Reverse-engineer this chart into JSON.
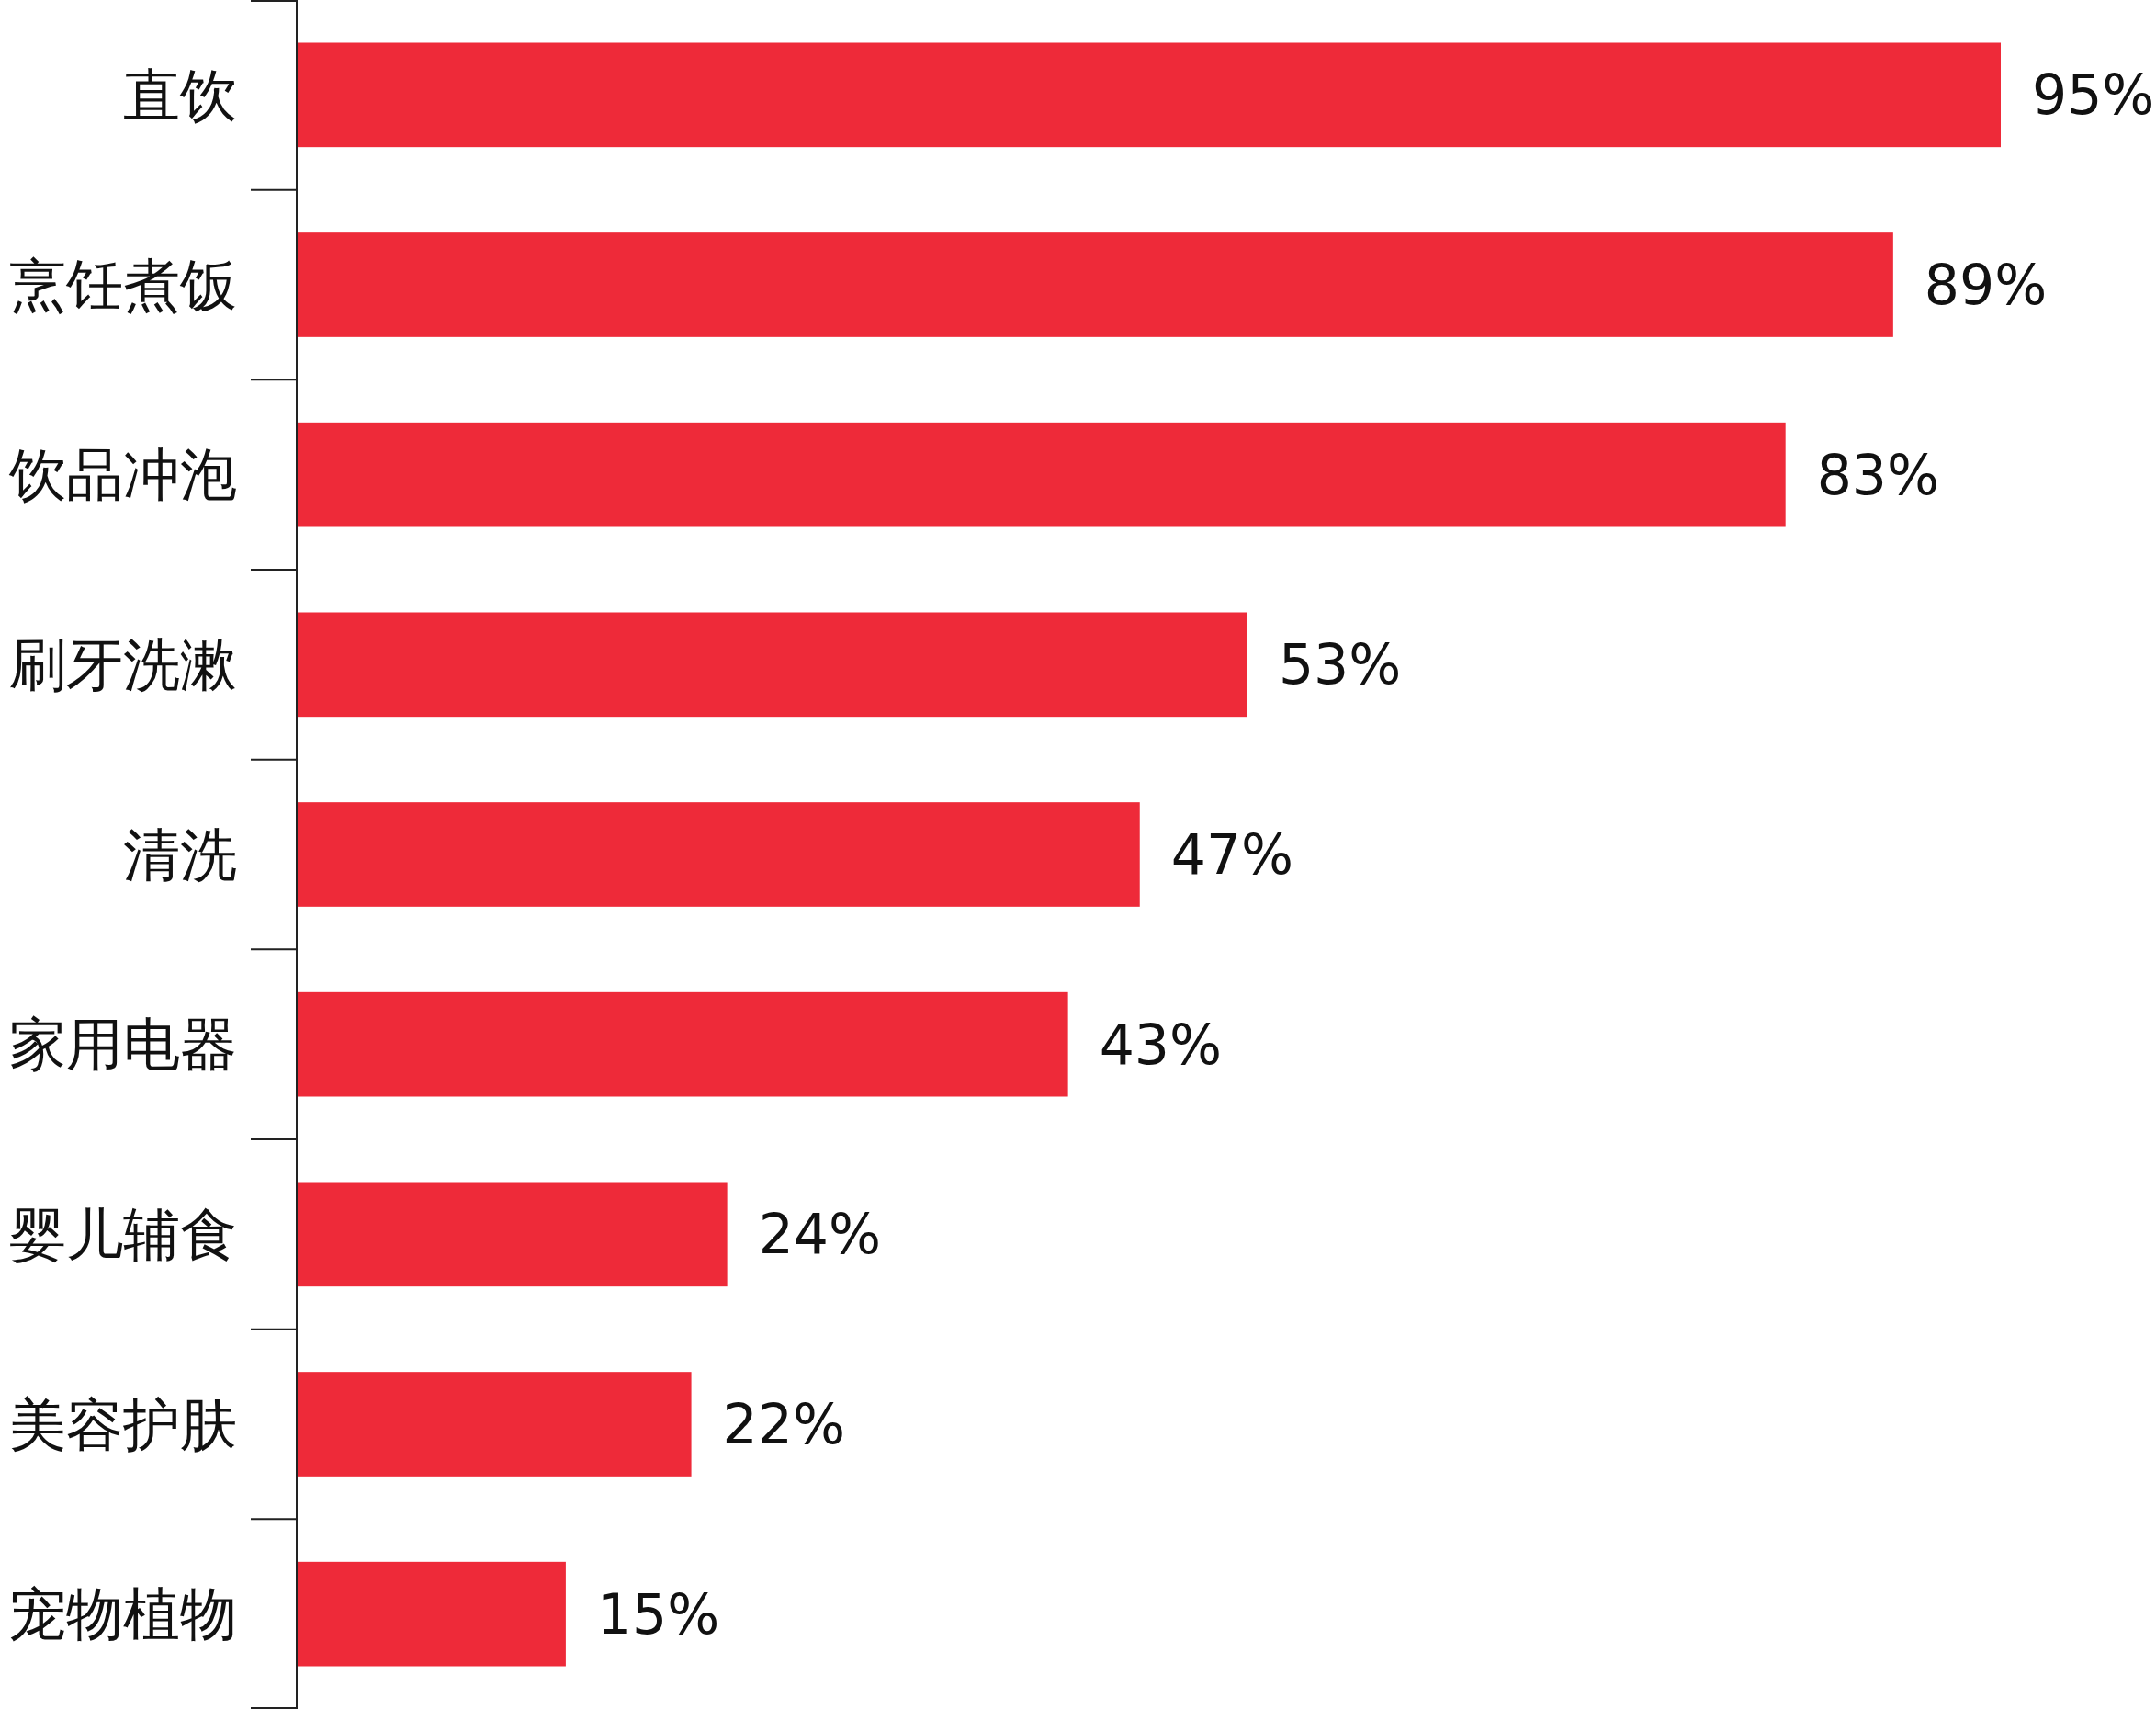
{
  "chart_data": {
    "type": "bar",
    "orientation": "horizontal",
    "categories": [
      "直饮",
      "烹饪煮饭",
      "饮品冲泡",
      "刷牙洗漱",
      "清洗",
      "家用电器",
      "婴儿辅食",
      "美容护肤",
      "宠物植物"
    ],
    "values": [
      95,
      89,
      83,
      53,
      47,
      43,
      24,
      22,
      15
    ],
    "value_labels": [
      "95%",
      "89%",
      "83%",
      "53%",
      "47%",
      "43%",
      "24%",
      "22%",
      "15%"
    ],
    "color": "#ee2a39"
  }
}
